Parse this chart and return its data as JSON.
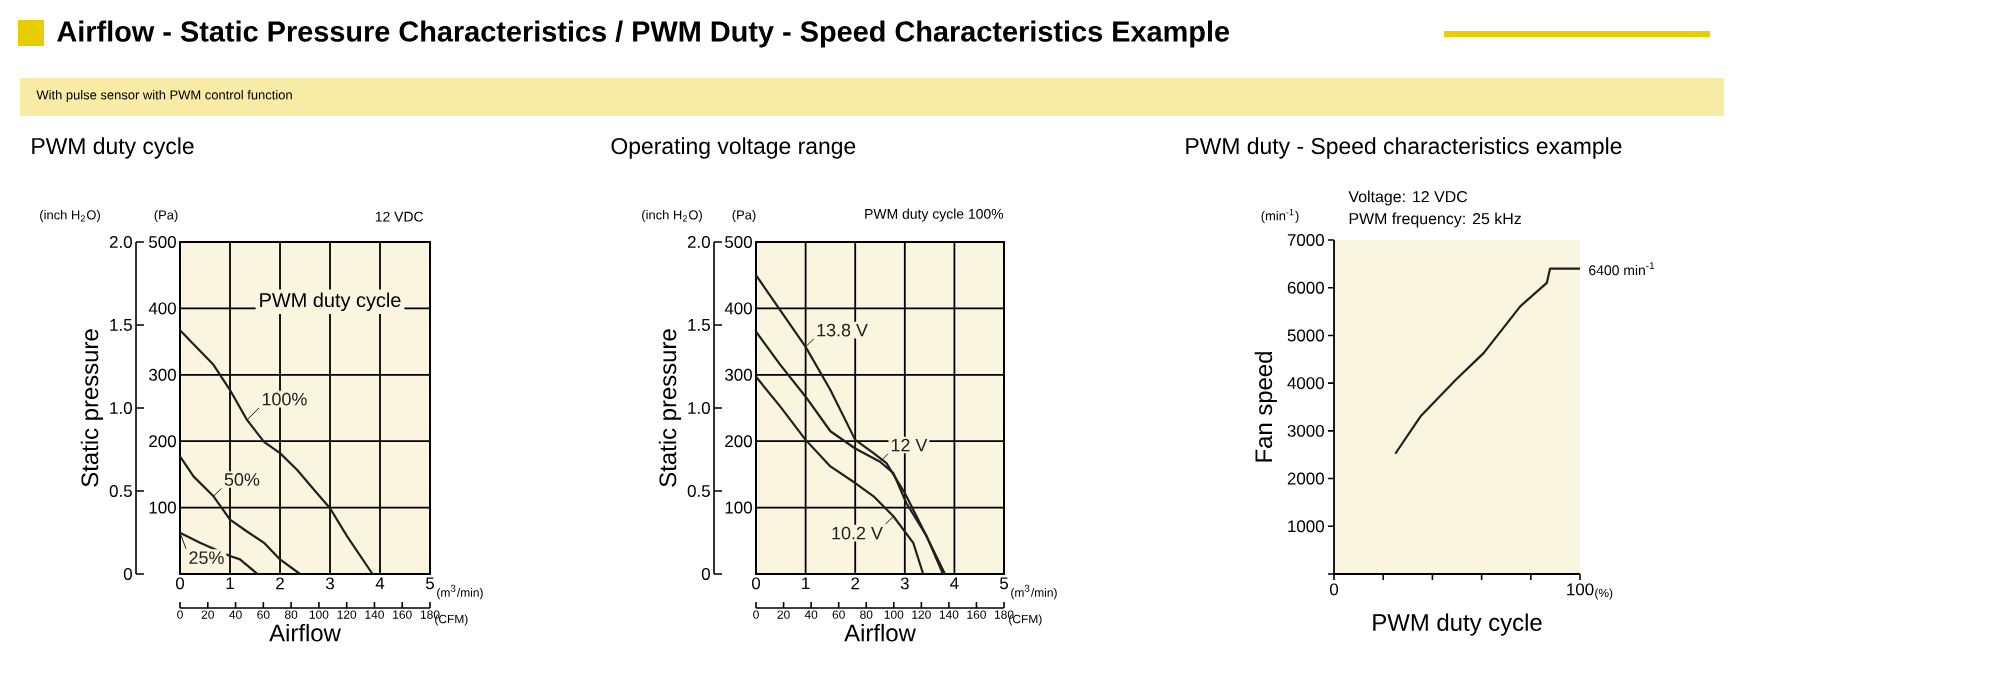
{
  "chart_data": [
    {
      "type": "line",
      "title": "PWM duty cycle",
      "xlabel": "Airflow",
      "ylabel": "Static pressure",
      "y2label": "(Pa)",
      "x2label": "(CFM)",
      "legend_title": "PWM duty cycle",
      "annotations": [
        "Airflow - Static Pressure Characteristics / PWM Duty - Speed Characteristics Example",
        "With pulse sensor with PWM control function",
        "12 VDC",
        "(inch H$_{2}$O)",
        "(m$^{3}$/min)"
      ],
      "xlim": [
        0,
        5
      ],
      "xticks": [
        0,
        1,
        2,
        3,
        4,
        5
      ],
      "x2lim": [
        0,
        180
      ],
      "x2ticks": [
        0,
        20,
        40,
        60,
        80,
        100,
        120,
        140,
        160,
        180
      ],
      "ylim": [
        0,
        2
      ],
      "yticks": [
        0,
        0.5,
        {
          "value": 1,
          "label": "1.0"
        },
        1.5,
        {
          "value": 2,
          "label": "2.0"
        }
      ],
      "y2lim": [
        0,
        500
      ],
      "y2ticks": [
        100,
        200,
        300,
        400,
        500
      ],
      "grid": true,
      "series": [
        {
          "name": "100%",
          "color": "#231f20",
          "axis": "y2",
          "x": [
            0,
            0.67,
            1.0,
            1.34,
            1.68,
            2.0,
            2.34,
            2.68,
            3.0,
            3.34,
            3.85
          ],
          "values": [
            367,
            315,
            277,
            232,
            199,
            182,
            157,
            127,
            99,
            57,
            0
          ]
        },
        {
          "name": "50%",
          "color": "#231f20",
          "axis": "y2",
          "x": [
            0,
            0.27,
            0.67,
            1.0,
            1.34,
            1.68,
            2.0,
            2.4
          ],
          "values": [
            177,
            147,
            117,
            82,
            64,
            47,
            22,
            0
          ]
        },
        {
          "name": "25%",
          "color": "#231f20",
          "axis": "y2",
          "x": [
            0,
            0.4,
            1.0,
            1.2,
            1.55
          ],
          "values": [
            62,
            47,
            27,
            22,
            0
          ]
        }
      ]
    },
    {
      "type": "line",
      "title": "Operating voltage range",
      "xlabel": "Airflow",
      "ylabel": "Static pressure",
      "y2label": "(Pa)",
      "x2label": "(CFM)",
      "annotations": [
        "PWM duty cycle 100%",
        "(inch H$_{2}$O)",
        "(m$^{3}$/min)"
      ],
      "xlim": [
        0,
        5
      ],
      "xticks": [
        0,
        1,
        2,
        3,
        4,
        5
      ],
      "x2lim": [
        0,
        180
      ],
      "x2ticks": [
        0,
        20,
        40,
        60,
        80,
        100,
        120,
        140,
        160,
        180
      ],
      "ylim": [
        0,
        2
      ],
      "yticks": [
        0,
        0.5,
        {
          "value": 1,
          "label": "1.0"
        },
        1.5,
        {
          "value": 2,
          "label": "2.0"
        }
      ],
      "y2lim": [
        0,
        500
      ],
      "y2ticks": [
        100,
        200,
        300,
        400,
        500
      ],
      "grid": true,
      "series": [
        {
          "name": "13.8 V",
          "color": "#231f20",
          "axis": "y2",
          "x": [
            0,
            0.49,
            1.0,
            1.5,
            2.0,
            2.37,
            2.63,
            3.0,
            3.37,
            3.81
          ],
          "values": [
            450,
            397,
            342,
            277,
            202,
            182,
            167,
            122,
            67,
            0
          ]
        },
        {
          "name": "12 V",
          "color": "#231f20",
          "axis": "y2",
          "x": [
            0,
            0.49,
            1.0,
            1.5,
            2.0,
            2.5,
            2.77,
            3.03,
            3.44,
            3.77
          ],
          "values": [
            365,
            315,
            267,
            215,
            189,
            169,
            152,
            107,
            57,
            0
          ]
        },
        {
          "name": "10.2 V",
          "color": "#231f20",
          "axis": "y2",
          "x": [
            0,
            0.49,
            1.0,
            1.5,
            2.0,
            2.37,
            2.77,
            3.17,
            3.37
          ],
          "values": [
            297,
            252,
            202,
            162,
            137,
            117,
            87,
            47,
            0
          ]
        }
      ]
    },
    {
      "type": "line",
      "title": "PWM duty - Speed characteristics example",
      "xlabel": "PWM duty cycle",
      "ylabel": "Fan speed",
      "annotations": [
        "Voltage: 12 VDC",
        "PWM frequency: 25 kHz",
        "(min$^{-1}$)",
        "(%)",
        {
          "text": "6400 min$^{-1}$",
          "x": 100,
          "y": 6400
        }
      ],
      "xlim": [
        0,
        100
      ],
      "xticks": [
        0,
        {
          "value": 20,
          "label": null
        },
        {
          "value": 40,
          "label": null
        },
        {
          "value": 60,
          "label": null
        },
        {
          "value": 80,
          "label": null
        },
        100
      ],
      "ylim": [
        0,
        7000
      ],
      "yticks": [
        {
          "value": 0,
          "label": null
        },
        1000,
        2000,
        3000,
        4000,
        5000,
        6000,
        7000
      ],
      "series": [
        {
          "color": "#231f20",
          "x": [
            24.9,
            35.1,
            49.5,
            60.8,
            75.7,
            86.5,
            87.8,
            100
          ],
          "values": [
            2520,
            3300,
            4070,
            4630,
            5610,
            6100,
            6400,
            6400
          ]
        }
      ]
    }
  ]
}
